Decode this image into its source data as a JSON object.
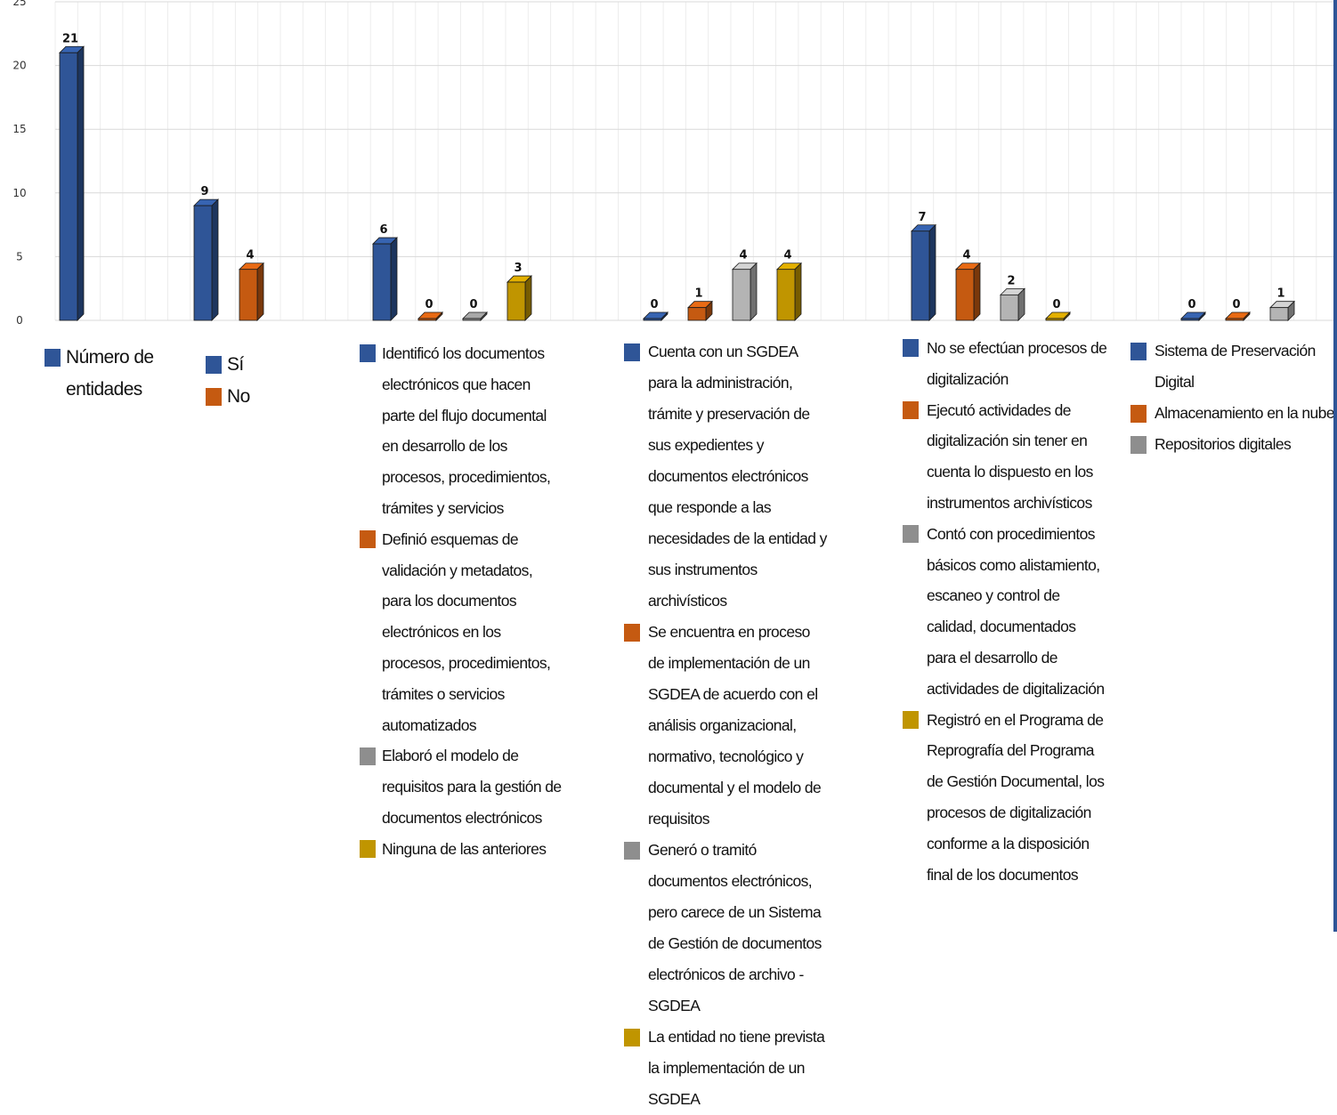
{
  "chart_data": {
    "type": "bar",
    "ylim": [
      0,
      25
    ],
    "yticks": [
      0,
      5,
      10,
      15,
      20,
      25
    ],
    "grid": true,
    "colors": {
      "blue": "#2f5597",
      "orange": "#c55a11",
      "gray": "#8e8e8e",
      "lightgray": "#b4b4b4",
      "gold": "#c09500"
    },
    "groups": [
      {
        "bars": [
          {
            "value": 21,
            "label": "21",
            "color": "#2f5597"
          }
        ],
        "legend": [
          {
            "text": "Número de entidades",
            "color": "#2f5597"
          }
        ]
      },
      {
        "bars": [
          {
            "value": 9,
            "label": "9",
            "color": "#2f5597"
          },
          {
            "value": 4,
            "label": "4",
            "color": "#c55a11"
          }
        ],
        "legend": [
          {
            "text": "Sí",
            "color": "#2f5597"
          },
          {
            "text": "No",
            "color": "#c55a11"
          }
        ]
      },
      {
        "bars": [
          {
            "value": 6,
            "label": "6",
            "color": "#2f5597"
          },
          {
            "value": 0,
            "label": "0",
            "color": "#c55a11"
          },
          {
            "value": 0,
            "label": "0",
            "color": "#8e8e8e"
          },
          {
            "value": 3,
            "label": "3",
            "color": "#c09500"
          }
        ],
        "legend": [
          {
            "text": "Identificó los documentos electrónicos que hacen parte del flujo documental en desarrollo de los procesos, procedimientos, trámites y servicios",
            "color": "#2f5597"
          },
          {
            "text": "Definió esquemas de validación y metadatos, para los documentos electrónicos en los procesos, procedimientos, trámites o servicios automatizados",
            "color": "#c55a11"
          },
          {
            "text": "Elaboró el modelo de requisitos para la gestión de documentos electrónicos",
            "color": "#8e8e8e"
          },
          {
            "text": "Ninguna de las anteriores",
            "color": "#c09500"
          }
        ]
      },
      {
        "bars": [
          {
            "value": 0,
            "label": "0",
            "color": "#2f5597"
          },
          {
            "value": 1,
            "label": "1",
            "color": "#c55a11"
          },
          {
            "value": 4,
            "label": "4",
            "color": "#b4b4b4"
          },
          {
            "value": 4,
            "label": "4",
            "color": "#c09500"
          }
        ],
        "legend": [
          {
            "text": "Cuenta con un SGDEA para la administración, trámite y preservación de sus expedientes y documentos electrónicos que responde a las necesidades de la entidad y sus instrumentos archivísticos",
            "color": "#2f5597"
          },
          {
            "text": "Se encuentra en proceso de implementación de un SGDEA de acuerdo con el análisis organizacional, normativo, tecnológico y documental y el modelo de requisitos",
            "color": "#c55a11"
          },
          {
            "text": "Generó o tramitó documentos electrónicos, pero carece de un Sistema de Gestión de documentos electrónicos de archivo - SGDEA",
            "color": "#8e8e8e"
          },
          {
            "text": "La entidad no tiene prevista la implementación de un SGDEA",
            "color": "#c09500"
          }
        ]
      },
      {
        "bars": [
          {
            "value": 7,
            "label": "7",
            "color": "#2f5597"
          },
          {
            "value": 4,
            "label": "4",
            "color": "#c55a11"
          },
          {
            "value": 2,
            "label": "2",
            "color": "#b4b4b4"
          },
          {
            "value": 0,
            "label": "0",
            "color": "#c09500"
          }
        ],
        "legend": [
          {
            "text": "No se efectúan procesos de digitalización",
            "color": "#2f5597"
          },
          {
            "text": "Ejecutó actividades de digitalización sin tener en cuenta lo dispuesto en los instrumentos archivísticos",
            "color": "#c55a11"
          },
          {
            "text": "Contó con procedimientos básicos como alistamiento, escaneo y control de calidad, documentados para el desarrollo de actividades de digitalización",
            "color": "#8e8e8e"
          },
          {
            "text": "Registró en el Programa de Reprografía del Programa de Gestión Documental, los procesos de digitalización conforme a la disposición final de los documentos",
            "color": "#c09500"
          }
        ]
      },
      {
        "bars": [
          {
            "value": 0,
            "label": "0",
            "color": "#2f5597"
          },
          {
            "value": 0,
            "label": "0",
            "color": "#c55a11"
          },
          {
            "value": 1,
            "label": "1",
            "color": "#b4b4b4"
          }
        ],
        "legend": [
          {
            "text": "Sistema de Preservación Digital",
            "color": "#2f5597"
          },
          {
            "text": "Almacenamiento en la nube",
            "color": "#c55a11"
          },
          {
            "text": "Repositorios digitales",
            "color": "#8e8e8e"
          }
        ]
      }
    ]
  }
}
